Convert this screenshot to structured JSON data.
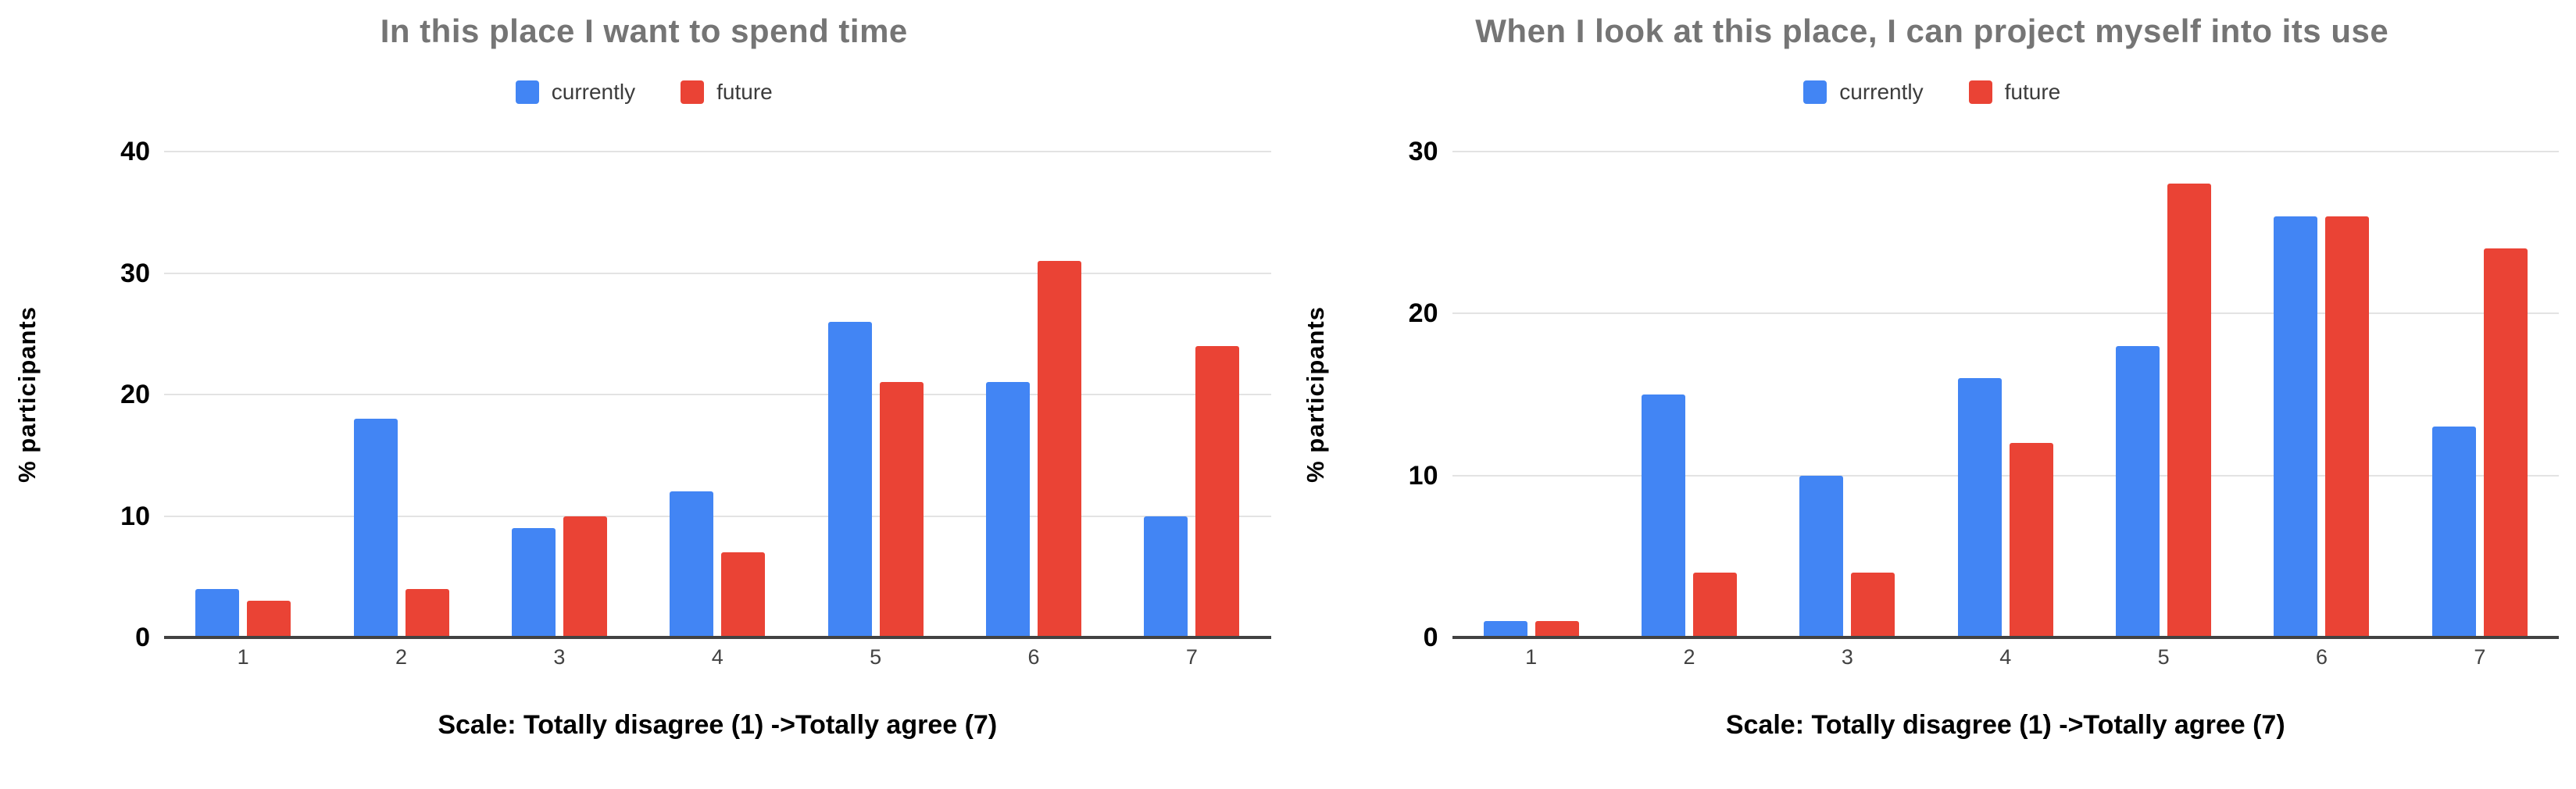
{
  "chart_data": [
    {
      "type": "bar",
      "title": "In this place I want to spend time",
      "ylabel": "% participants",
      "xlabel": "Scale: Totally disagree (1) -&gt;Totally agree (7)",
      "xlabel_text": "Scale: Totally disagree (1) ->Totally agree (7)",
      "ymax": 40,
      "ylim": [
        0,
        40
      ],
      "yticks": [
        0,
        10,
        20,
        30,
        40
      ],
      "categories": [
        "1",
        "2",
        "3",
        "4",
        "5",
        "6",
        "7"
      ],
      "grid": true,
      "legend_position": "top",
      "series": [
        {
          "name": "currently",
          "color": "#4285F4",
          "values": [
            4,
            18,
            9,
            12,
            26,
            21,
            10
          ]
        },
        {
          "name": "future",
          "color": "#EA4335",
          "values": [
            3,
            4,
            10,
            7,
            21,
            31,
            24
          ]
        }
      ]
    },
    {
      "type": "bar",
      "title": "When I look at this place, I can project myself into its use",
      "ylabel": "% participants",
      "xlabel": "Scale: Totally disagree (1) -&gt;Totally agree (7)",
      "xlabel_text": "Scale: Totally disagree (1) ->Totally agree (7)",
      "ymax": 30,
      "ylim": [
        0,
        30
      ],
      "yticks": [
        0,
        10,
        20,
        30
      ],
      "categories": [
        "1",
        "2",
        "3",
        "4",
        "5",
        "6",
        "7"
      ],
      "grid": true,
      "legend_position": "top",
      "series": [
        {
          "name": "currently",
          "color": "#4285F4",
          "values": [
            1,
            15,
            10,
            16,
            18,
            26,
            13
          ]
        },
        {
          "name": "future",
          "color": "#EA4335",
          "values": [
            1,
            4,
            4,
            12,
            28,
            26,
            24
          ]
        }
      ]
    }
  ],
  "colors": {
    "title_gray": "#757575",
    "axis_dark": "#424242",
    "gridline": "#e3e3e3",
    "series_blue": "#4285F4",
    "series_red": "#EA4335"
  }
}
